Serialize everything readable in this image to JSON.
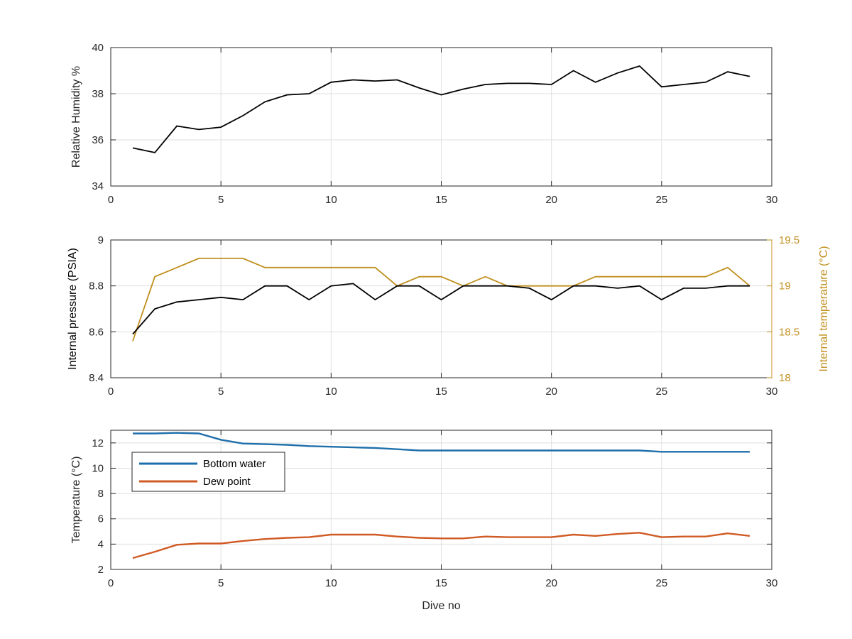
{
  "figure": {
    "background": "#ffffff",
    "axis_color": "#262626",
    "grid_color": "#dfdfdf"
  },
  "chart_data": [
    {
      "type": "line",
      "title": "",
      "xlabel": "",
      "ylabel": "Relative Humidity %",
      "xlim": [
        0,
        30
      ],
      "ylim": [
        34,
        40
      ],
      "xticks": [
        "0",
        "5",
        "10",
        "15",
        "20",
        "25",
        "30"
      ],
      "yticks": [
        "34",
        "36",
        "38",
        "40"
      ],
      "grid": true,
      "series": [
        {
          "color": "#000000",
          "x": [
            1,
            2,
            3,
            4,
            5,
            6,
            7,
            8,
            9,
            10,
            11,
            12,
            13,
            14,
            15,
            16,
            17,
            18,
            19,
            20,
            21,
            22,
            23,
            24,
            25,
            26,
            27,
            28,
            29
          ],
          "values": [
            35.65,
            35.45,
            36.6,
            36.45,
            36.55,
            37.05,
            37.65,
            37.95,
            38.0,
            38.5,
            38.6,
            38.55,
            38.6,
            38.25,
            37.95,
            38.2,
            38.4,
            38.45,
            38.45,
            38.4,
            39.0,
            38.5,
            38.9,
            39.2,
            38.3,
            38.4,
            38.5,
            38.95,
            38.75
          ]
        }
      ]
    },
    {
      "type": "line",
      "title": "",
      "xlabel": "",
      "ylabel": "Internal pressure (PSIA)",
      "y2label": "Internal temperature (°C)",
      "xlim": [
        0,
        30
      ],
      "ylim": [
        8.4,
        9.0
      ],
      "y2lim": [
        18.0,
        19.5
      ],
      "xticks": [
        "0",
        "5",
        "10",
        "15",
        "20",
        "25",
        "30"
      ],
      "yticks": [
        "8.4",
        "8.6",
        "8.8",
        "9"
      ],
      "y2ticks": [
        "18",
        "18.5",
        "19",
        "19.5"
      ],
      "y2color": "#c08f1e",
      "grid": true,
      "series": [
        {
          "axis": "left",
          "color": "#000000",
          "x": [
            1,
            2,
            3,
            4,
            5,
            6,
            7,
            8,
            9,
            10,
            11,
            12,
            13,
            14,
            15,
            16,
            17,
            18,
            19,
            20,
            21,
            22,
            23,
            24,
            25,
            26,
            27,
            28,
            29
          ],
          "values": [
            8.59,
            8.7,
            8.73,
            8.74,
            8.75,
            8.74,
            8.8,
            8.8,
            8.74,
            8.8,
            8.81,
            8.74,
            8.8,
            8.8,
            8.74,
            8.8,
            8.8,
            8.8,
            8.79,
            8.74,
            8.8,
            8.8,
            8.79,
            8.8,
            8.74,
            8.79,
            8.79,
            8.8,
            8.8
          ]
        },
        {
          "axis": "right",
          "color": "#c08f1e",
          "x": [
            1,
            2,
            3,
            4,
            5,
            6,
            7,
            8,
            9,
            10,
            11,
            12,
            13,
            14,
            15,
            16,
            17,
            18,
            19,
            20,
            21,
            22,
            23,
            24,
            25,
            26,
            27,
            28,
            29
          ],
          "values": [
            18.4,
            19.1,
            19.2,
            19.3,
            19.3,
            19.3,
            19.2,
            19.2,
            19.2,
            19.2,
            19.2,
            19.2,
            19.0,
            19.1,
            19.1,
            19.0,
            19.1,
            19.0,
            19.0,
            19.0,
            19.0,
            19.1,
            19.1,
            19.1,
            19.1,
            19.1,
            19.1,
            19.2,
            19.0
          ]
        }
      ]
    },
    {
      "type": "line",
      "title": "",
      "xlabel": "Dive no",
      "ylabel": "Temperature (°C)",
      "xlim": [
        0,
        30
      ],
      "ylim": [
        2,
        13
      ],
      "xticks": [
        "0",
        "5",
        "10",
        "15",
        "20",
        "25",
        "30"
      ],
      "yticks": [
        "2",
        "4",
        "6",
        "8",
        "10",
        "12"
      ],
      "ytick_values": [
        2,
        4,
        6,
        8,
        10,
        12
      ],
      "grid": true,
      "legend": "upper-left",
      "series": [
        {
          "name": "Bottom water",
          "color": "#1f6fab",
          "x": [
            1,
            2,
            3,
            4,
            5,
            6,
            7,
            8,
            9,
            10,
            11,
            12,
            13,
            14,
            15,
            16,
            17,
            18,
            19,
            20,
            21,
            22,
            23,
            24,
            25,
            26,
            27,
            28,
            29
          ],
          "values": [
            12.75,
            12.75,
            12.8,
            12.75,
            12.25,
            11.95,
            11.9,
            11.85,
            11.75,
            11.7,
            11.65,
            11.6,
            11.5,
            11.4,
            11.4,
            11.4,
            11.4,
            11.4,
            11.4,
            11.4,
            11.4,
            11.4,
            11.4,
            11.4,
            11.3,
            11.3,
            11.3,
            11.3,
            11.3
          ]
        },
        {
          "name": "Dew point",
          "color": "#d05a24",
          "x": [
            1,
            2,
            3,
            4,
            5,
            6,
            7,
            8,
            9,
            10,
            11,
            12,
            13,
            14,
            15,
            16,
            17,
            18,
            19,
            20,
            21,
            22,
            23,
            24,
            25,
            26,
            27,
            28,
            29
          ],
          "values": [
            2.9,
            3.4,
            3.95,
            4.05,
            4.05,
            4.25,
            4.4,
            4.5,
            4.55,
            4.75,
            4.75,
            4.75,
            4.6,
            4.5,
            4.45,
            4.45,
            4.6,
            4.55,
            4.55,
            4.55,
            4.75,
            4.65,
            4.8,
            4.9,
            4.55,
            4.6,
            4.6,
            4.85,
            4.65
          ]
        }
      ]
    }
  ]
}
